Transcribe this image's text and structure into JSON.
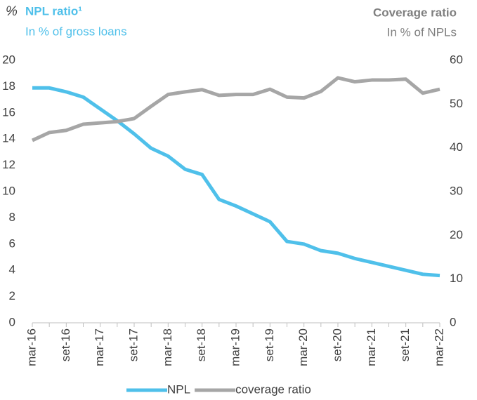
{
  "chart_data": {
    "type": "line",
    "unit_label": "%",
    "title": "NPL ratio¹",
    "subtitle": "In % of gross loans",
    "y2_title": "Coverage ratio",
    "y2_subtitle": "In % of NPLs",
    "categories": [
      "mar-16",
      null,
      "set-16",
      null,
      "mar-17",
      null,
      "set-17",
      null,
      "mar-18",
      null,
      "set-18",
      null,
      "mar-19",
      null,
      "set-19",
      null,
      "mar-20",
      null,
      "set-20",
      null,
      "mar-21",
      null,
      "set-21",
      null,
      "mar-22"
    ],
    "series": [
      {
        "name": "NPL",
        "color": "#4fc0ea",
        "values": [
          17.9,
          17.9,
          17.6,
          17.2,
          16.3,
          15.4,
          14.4,
          13.3,
          12.7,
          11.7,
          11.3,
          9.4,
          8.9,
          8.3,
          7.7,
          6.2,
          6.0,
          5.5,
          5.3,
          4.9,
          4.6,
          4.3,
          4.0,
          3.7,
          3.6
        ]
      },
      {
        "name": "coverage ratio",
        "color": "#a6a6a6",
        "axis": "y2",
        "values": [
          41.7,
          43.5,
          44.0,
          45.4,
          45.7,
          46.0,
          46.7,
          49.5,
          52.2,
          52.8,
          53.3,
          52.0,
          52.2,
          52.2,
          53.4,
          51.6,
          51.4,
          52.9,
          56.0,
          55.1,
          55.5,
          55.5,
          55.7,
          52.5,
          53.4
        ]
      }
    ],
    "ylim": [
      0,
      20
    ],
    "yticks": [
      0,
      2,
      4,
      6,
      8,
      10,
      12,
      14,
      16,
      18,
      20
    ],
    "y2lim": [
      0,
      60
    ],
    "y2ticks": [
      0,
      10,
      20,
      30,
      40,
      50,
      60
    ],
    "legend": "bottom"
  }
}
